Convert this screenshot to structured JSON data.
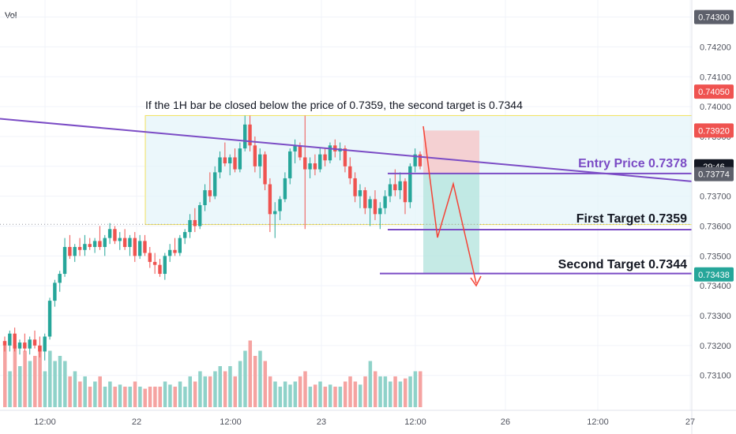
{
  "chart_data": {
    "type": "candlestick",
    "volume_label": "Vol",
    "y_axis": {
      "ticks": [
        "0.74300",
        "0.74200",
        "0.74100",
        "0.74000",
        "0.73900",
        "0.73800",
        "0.73700",
        "0.73600",
        "0.73500",
        "0.73400",
        "0.73300",
        "0.73200",
        "0.73100"
      ],
      "ylim": [
        0.7302,
        0.7432
      ]
    },
    "x_axis": {
      "ticks": [
        "12:00",
        "22",
        "12:00",
        "23",
        "12:00",
        "26",
        "12:00",
        "27"
      ]
    },
    "price_badges": [
      {
        "text": "0.74300",
        "price": 0.743,
        "color": "#5d606b"
      },
      {
        "text": "0.74050",
        "price": 0.7405,
        "color": "#ef5350"
      },
      {
        "text": "0.73920",
        "price": 0.7392,
        "color": "#ef5350"
      },
      {
        "text": "29:46",
        "price": 0.738,
        "color": "#131722"
      },
      {
        "text": "0.73774",
        "price": 0.73774,
        "color": "#5d606b"
      },
      {
        "text": "0.73438",
        "price": 0.73438,
        "color": "#26a69a"
      }
    ],
    "annotations": {
      "note": "If the 1H bar be closed below the price of 0.7359, the second target is 0.7344",
      "entry": "Entry Price 0.7378",
      "first_target": "First Target 0.7359",
      "second_target": "Second Target 0.7344"
    },
    "levels": {
      "range_top": 0.7397,
      "range_bottom": 0.73605,
      "entry": 0.73776,
      "first_target": 0.73588,
      "second_target": 0.73441,
      "stop": 0.7392,
      "dotted": 0.73606
    },
    "trendline": {
      "from_price": 0.7396,
      "to_price": 0.73752
    },
    "colors": {
      "up": "#26a69a",
      "down": "#ef5350",
      "up_vol": "#8fd2c9",
      "down_vol": "#f5a3a1",
      "purple": "#7b4cc5",
      "range_fill": "#e3f4fa",
      "range_border": "#f2e25f",
      "short_red": "#f6c6c8",
      "short_green": "#b7e5df"
    },
    "candles": [
      [
        0.73215,
        0.7323,
        0.7318,
        0.732,
        0.6
      ],
      [
        0.732,
        0.7325,
        0.7318,
        0.7324,
        0.35
      ],
      [
        0.7324,
        0.7326,
        0.7318,
        0.7319,
        0.6
      ],
      [
        0.7319,
        0.7322,
        0.7317,
        0.7321,
        0.4
      ],
      [
        0.7321,
        0.7324,
        0.7318,
        0.7319,
        0.55
      ],
      [
        0.7319,
        0.7323,
        0.7317,
        0.7322,
        0.45
      ],
      [
        0.7322,
        0.7325,
        0.7319,
        0.732,
        0.5
      ],
      [
        0.732,
        0.7323,
        0.7316,
        0.7318,
        0.6
      ],
      [
        0.7318,
        0.7324,
        0.7315,
        0.7323,
        0.35
      ],
      [
        0.7323,
        0.7336,
        0.7322,
        0.7335,
        0.55
      ],
      [
        0.7335,
        0.7342,
        0.7333,
        0.7341,
        0.45
      ],
      [
        0.7341,
        0.7345,
        0.7338,
        0.7344,
        0.5
      ],
      [
        0.7344,
        0.7356,
        0.7343,
        0.7353,
        0.45
      ],
      [
        0.7353,
        0.7357,
        0.7349,
        0.735,
        0.3
      ],
      [
        0.735,
        0.7354,
        0.7348,
        0.7353,
        0.35
      ],
      [
        0.7353,
        0.7356,
        0.735,
        0.7352,
        0.25
      ],
      [
        0.7352,
        0.7357,
        0.735,
        0.7354,
        0.3
      ],
      [
        0.7354,
        0.7356,
        0.7352,
        0.7353,
        0.2
      ],
      [
        0.7353,
        0.7356,
        0.7351,
        0.7355,
        0.25
      ],
      [
        0.7355,
        0.736,
        0.7352,
        0.7353,
        0.3
      ],
      [
        0.7353,
        0.7357,
        0.735,
        0.7356,
        0.2
      ],
      [
        0.7356,
        0.7361,
        0.7354,
        0.7359,
        0.25
      ],
      [
        0.7359,
        0.736,
        0.7354,
        0.7355,
        0.2
      ],
      [
        0.7355,
        0.7358,
        0.7352,
        0.7356,
        0.22
      ],
      [
        0.7356,
        0.7359,
        0.7352,
        0.7353,
        0.2
      ],
      [
        0.7353,
        0.7357,
        0.735,
        0.7356,
        0.2
      ],
      [
        0.7356,
        0.7358,
        0.7348,
        0.735,
        0.25
      ],
      [
        0.735,
        0.7357,
        0.7349,
        0.7355,
        0.2
      ],
      [
        0.7355,
        0.7357,
        0.735,
        0.7351,
        0.18
      ],
      [
        0.7351,
        0.7353,
        0.7346,
        0.7348,
        0.2
      ],
      [
        0.7348,
        0.7351,
        0.7344,
        0.7347,
        0.2
      ],
      [
        0.7347,
        0.7349,
        0.7343,
        0.7344,
        0.2
      ],
      [
        0.7344,
        0.7351,
        0.7342,
        0.735,
        0.25
      ],
      [
        0.735,
        0.7354,
        0.7348,
        0.7352,
        0.22
      ],
      [
        0.7352,
        0.7356,
        0.735,
        0.7351,
        0.2
      ],
      [
        0.7351,
        0.7357,
        0.735,
        0.7356,
        0.25
      ],
      [
        0.7356,
        0.7359,
        0.7354,
        0.7358,
        0.2
      ],
      [
        0.7358,
        0.7364,
        0.7356,
        0.7362,
        0.3
      ],
      [
        0.7362,
        0.7366,
        0.7358,
        0.736,
        0.25
      ],
      [
        0.736,
        0.7368,
        0.7359,
        0.7367,
        0.35
      ],
      [
        0.7367,
        0.7374,
        0.7365,
        0.7372,
        0.3
      ],
      [
        0.7372,
        0.7378,
        0.7368,
        0.737,
        0.3
      ],
      [
        0.737,
        0.738,
        0.7369,
        0.7378,
        0.35
      ],
      [
        0.7378,
        0.7385,
        0.7376,
        0.7383,
        0.4
      ],
      [
        0.7383,
        0.7388,
        0.738,
        0.7381,
        0.35
      ],
      [
        0.7381,
        0.7384,
        0.7377,
        0.7383,
        0.4
      ],
      [
        0.7383,
        0.7386,
        0.7378,
        0.7379,
        0.3
      ],
      [
        0.7379,
        0.7388,
        0.7378,
        0.7386,
        0.45
      ],
      [
        0.7386,
        0.7397,
        0.7385,
        0.7394,
        0.55
      ],
      [
        0.7394,
        0.7397,
        0.7385,
        0.7387,
        0.65
      ],
      [
        0.7387,
        0.739,
        0.7378,
        0.738,
        0.5
      ],
      [
        0.738,
        0.7386,
        0.7376,
        0.7384,
        0.55
      ],
      [
        0.7384,
        0.7385,
        0.7372,
        0.7374,
        0.45
      ],
      [
        0.7374,
        0.7376,
        0.7358,
        0.7364,
        0.3
      ],
      [
        0.7364,
        0.7368,
        0.7356,
        0.7365,
        0.25
      ],
      [
        0.7365,
        0.737,
        0.7362,
        0.7369,
        0.2
      ],
      [
        0.7369,
        0.7378,
        0.7368,
        0.7376,
        0.25
      ],
      [
        0.7376,
        0.7386,
        0.7374,
        0.7385,
        0.22
      ],
      [
        0.7385,
        0.7389,
        0.7381,
        0.7387,
        0.25
      ],
      [
        0.7387,
        0.7388,
        0.7382,
        0.7383,
        0.3
      ],
      [
        0.7383,
        0.7397,
        0.7359,
        0.7379,
        0.35
      ],
      [
        0.7379,
        0.7383,
        0.7376,
        0.7381,
        0.2
      ],
      [
        0.7381,
        0.7384,
        0.7377,
        0.7379,
        0.22
      ],
      [
        0.7379,
        0.7386,
        0.7378,
        0.7384,
        0.25
      ],
      [
        0.7384,
        0.7386,
        0.738,
        0.7382,
        0.2
      ],
      [
        0.7382,
        0.7388,
        0.7381,
        0.7387,
        0.22
      ],
      [
        0.7387,
        0.7389,
        0.7383,
        0.7385,
        0.2
      ],
      [
        0.7385,
        0.7388,
        0.7382,
        0.7386,
        0.2
      ],
      [
        0.7386,
        0.7387,
        0.7378,
        0.738,
        0.25
      ],
      [
        0.738,
        0.7383,
        0.7374,
        0.7376,
        0.3
      ],
      [
        0.7376,
        0.7378,
        0.7368,
        0.737,
        0.25
      ],
      [
        0.737,
        0.7374,
        0.7366,
        0.7372,
        0.22
      ],
      [
        0.7372,
        0.7373,
        0.7364,
        0.7366,
        0.3
      ],
      [
        0.7366,
        0.737,
        0.736,
        0.7369,
        0.45
      ],
      [
        0.7369,
        0.7372,
        0.7362,
        0.7364,
        0.35
      ],
      [
        0.7364,
        0.7368,
        0.7359,
        0.7366,
        0.3
      ],
      [
        0.7366,
        0.7372,
        0.7364,
        0.737,
        0.3
      ],
      [
        0.737,
        0.7376,
        0.7368,
        0.7374,
        0.25
      ],
      [
        0.7374,
        0.7379,
        0.737,
        0.7372,
        0.3
      ],
      [
        0.7372,
        0.7378,
        0.7369,
        0.7375,
        0.25
      ],
      [
        0.7375,
        0.7376,
        0.7364,
        0.7368,
        0.28
      ],
      [
        0.7368,
        0.7381,
        0.7366,
        0.738,
        0.3
      ],
      [
        0.738,
        0.7386,
        0.7378,
        0.7384,
        0.35
      ],
      [
        0.7384,
        0.7385,
        0.7379,
        0.738,
        0.35
      ]
    ]
  }
}
